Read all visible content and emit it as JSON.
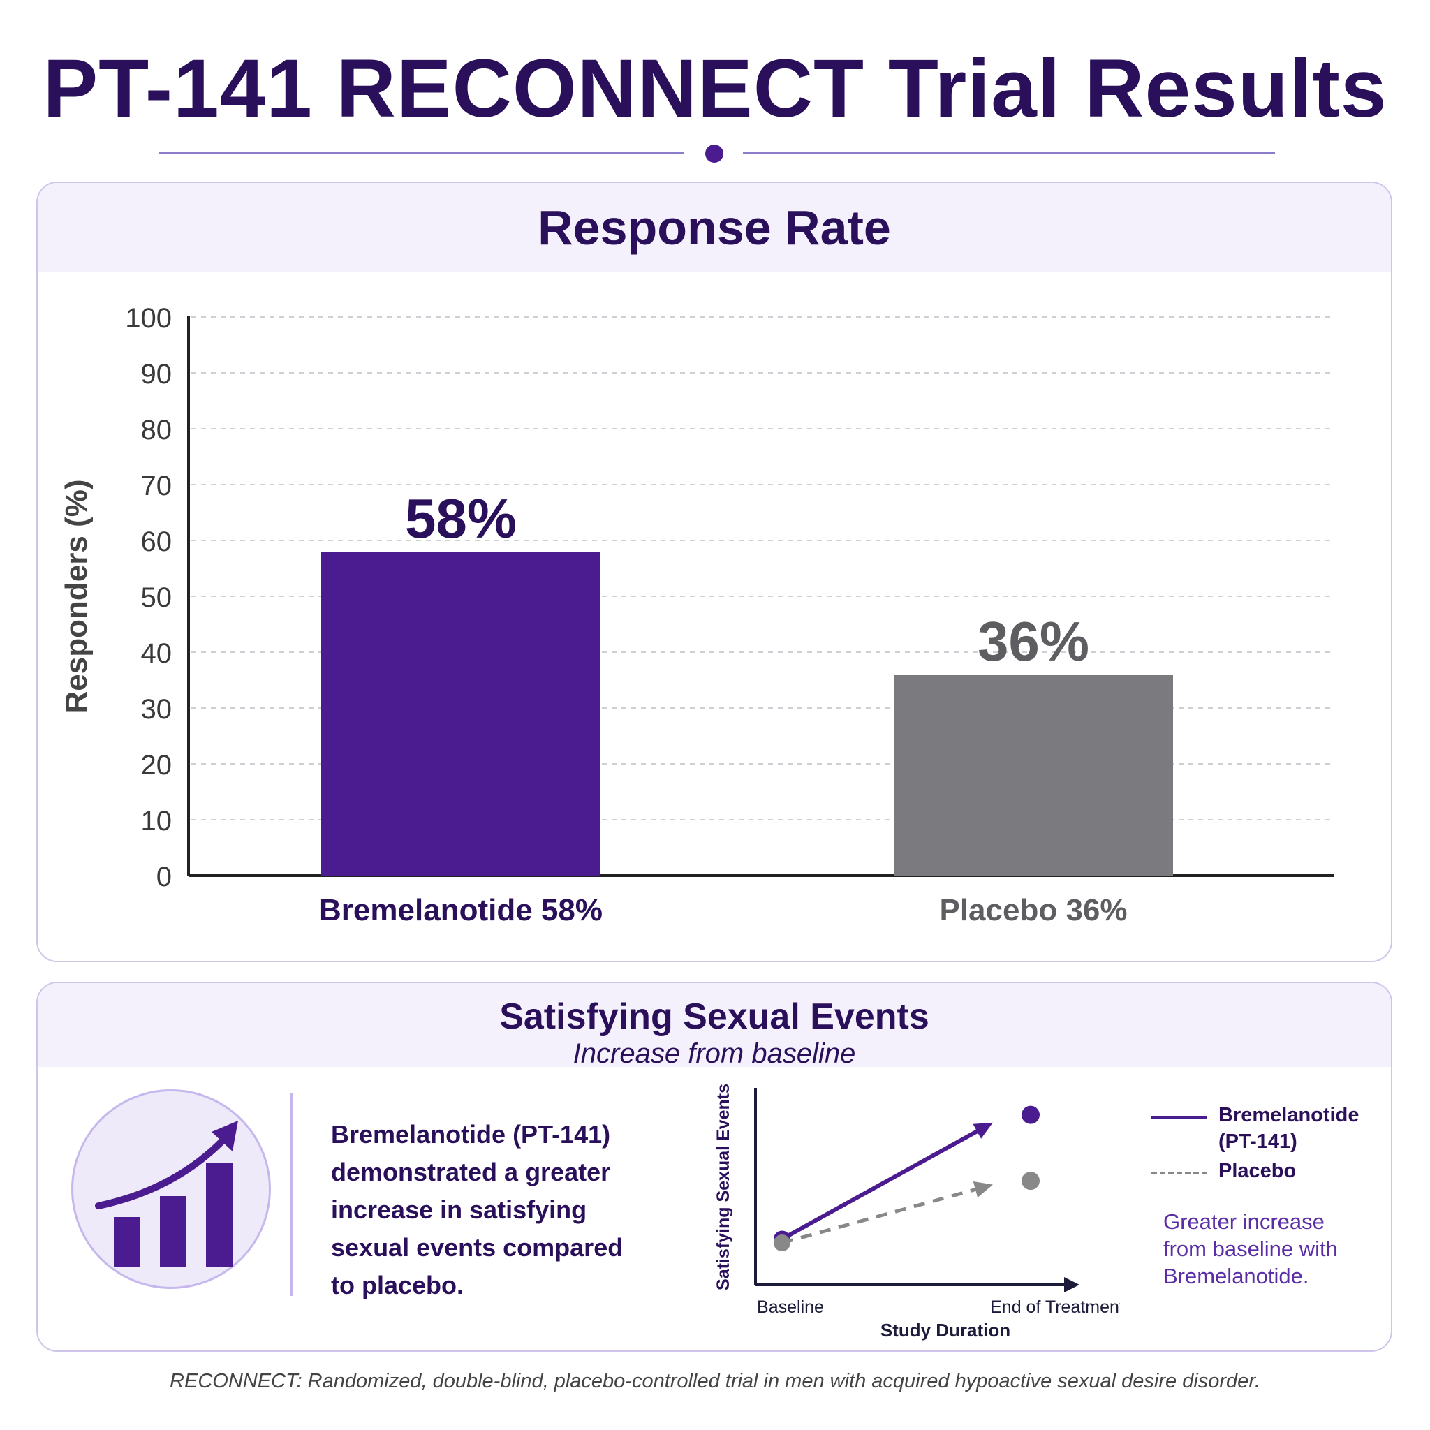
{
  "header": {
    "title": "PT-141 RECONNECT Trial Results"
  },
  "colors": {
    "primary": "#4b1c8f",
    "placebo": "#7b7b7f",
    "accent": "#5b2ea6",
    "heading": "#2a0f5a"
  },
  "response_card": {
    "title": "Response Rate"
  },
  "events_card": {
    "title": "Satisfying Sexual Events",
    "subtitle": "Increase from baseline",
    "icon": "rising-bar-chart-icon",
    "description": "Bremelanotide (PT-141) demonstrated a greater increase in satisfying sexual events compared to placebo.",
    "legend_note": "Greater increase from baseline with Bremelanotide."
  },
  "footnote": "RECONNECT: Randomized, double-blind, placebo-controlled trial in men with acquired hypoactive sexual desire disorder.",
  "chart_data": [
    {
      "type": "bar",
      "title": "Response Rate",
      "ylabel": "Responders (%)",
      "ylim": [
        0,
        100
      ],
      "yticks": [
        0,
        10,
        20,
        30,
        40,
        50,
        60,
        70,
        80,
        90,
        100
      ],
      "grid": true,
      "categories": [
        "Bremelanotide 58%",
        "Placebo 36%"
      ],
      "values": [
        58,
        36
      ],
      "data_labels": [
        "58%",
        "36%"
      ],
      "colors": [
        "#4b1c8f",
        "#7b7b7f"
      ]
    },
    {
      "type": "line",
      "ylabel": "Satisfying Sexual Events",
      "xlabel": "Study Duration",
      "categories": [
        "Baseline",
        "End of Treatment"
      ],
      "legend": "right",
      "series": [
        {
          "name": "Bremelanotide (PT-141)",
          "values": [
            1.0,
            4.2
          ],
          "color": "#4b1c8f",
          "style": "solid"
        },
        {
          "name": "Placebo",
          "values": [
            0.9,
            2.5
          ],
          "color": "#888888",
          "style": "dashed"
        }
      ]
    }
  ]
}
